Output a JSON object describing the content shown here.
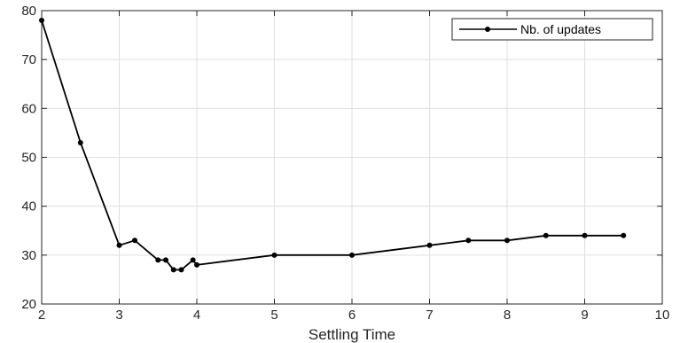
{
  "chart_data": {
    "type": "line",
    "title": "",
    "xlabel": "Settling Time",
    "ylabel": "",
    "xlim": [
      2,
      10
    ],
    "ylim": [
      20,
      80
    ],
    "xticks": [
      2,
      3,
      4,
      5,
      6,
      7,
      8,
      9,
      10
    ],
    "yticks": [
      20,
      30,
      40,
      50,
      60,
      70,
      80
    ],
    "grid": true,
    "legend": {
      "position": "top-right",
      "entries": [
        "Nb. of updates"
      ]
    },
    "series": [
      {
        "name": "Nb. of updates",
        "color": "#000000",
        "marker": "dot",
        "x": [
          2,
          2.5,
          3,
          3.2,
          3.5,
          3.6,
          3.7,
          3.8,
          3.95,
          4,
          5,
          6,
          7,
          7.5,
          8,
          8.5,
          9,
          9.5
        ],
        "y": [
          78,
          53,
          32,
          33,
          29,
          29,
          27,
          27,
          29,
          28,
          30,
          30,
          32,
          33,
          33,
          34,
          34,
          34
        ]
      }
    ]
  }
}
